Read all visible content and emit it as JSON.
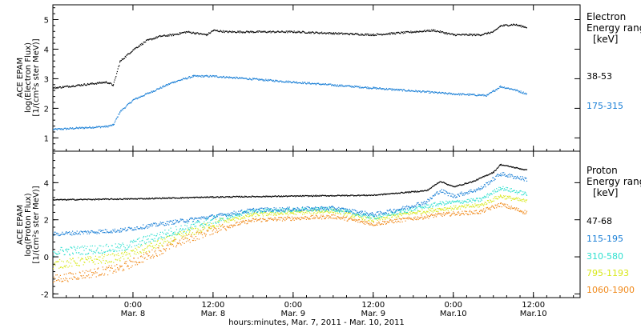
{
  "chart_data": [
    {
      "type": "scatter",
      "panel": "electron",
      "ylabel_lines": [
        "ACE EPAM",
        "log(Electron Flux)",
        "[1/(cm²s ster MeV)]"
      ],
      "ylim": [
        0.55,
        5.5
      ],
      "yticks": [
        1,
        2,
        3,
        4,
        5
      ],
      "xlim": [
        "2011-03-07T12:00",
        "2011-03-10T19:00"
      ],
      "legend_title_lines": [
        "Electron",
        "Energy ranges",
        "[keV]"
      ],
      "series": [
        {
          "name": "38-53",
          "color": "#000000",
          "points": [
            [
              "2011-03-07T12:00",
              2.7
            ],
            [
              "2011-03-07T14:00",
              2.75
            ],
            [
              "2011-03-07T16:00",
              2.8
            ],
            [
              "2011-03-07T18:00",
              2.85
            ],
            [
              "2011-03-07T20:00",
              2.9
            ],
            [
              "2011-03-07T21:00",
              2.8
            ],
            [
              "2011-03-07T22:00",
              3.6
            ],
            [
              "2011-03-08T00:00",
              4.0
            ],
            [
              "2011-03-08T02:00",
              4.3
            ],
            [
              "2011-03-08T04:00",
              4.45
            ],
            [
              "2011-03-08T06:00",
              4.5
            ],
            [
              "2011-03-08T08:00",
              4.6
            ],
            [
              "2011-03-08T11:00",
              4.5
            ],
            [
              "2011-03-08T12:00",
              4.65
            ],
            [
              "2011-03-08T14:00",
              4.6
            ],
            [
              "2011-03-08T18:00",
              4.6
            ],
            [
              "2011-03-09T00:00",
              4.6
            ],
            [
              "2011-03-09T06:00",
              4.55
            ],
            [
              "2011-03-09T12:00",
              4.5
            ],
            [
              "2011-03-09T18:00",
              4.6
            ],
            [
              "2011-03-09T21:00",
              4.65
            ],
            [
              "2011-03-10T00:00",
              4.5
            ],
            [
              "2011-03-10T04:00",
              4.5
            ],
            [
              "2011-03-10T06:00",
              4.6
            ],
            [
              "2011-03-10T07:00",
              4.8
            ],
            [
              "2011-03-10T09:00",
              4.85
            ],
            [
              "2011-03-10T11:00",
              4.75
            ]
          ]
        },
        {
          "name": "175-315",
          "color": "#1a7fd6",
          "points": [
            [
              "2011-03-07T12:00",
              1.3
            ],
            [
              "2011-03-07T16:00",
              1.35
            ],
            [
              "2011-03-07T20:00",
              1.4
            ],
            [
              "2011-03-07T21:00",
              1.45
            ],
            [
              "2011-03-07T22:00",
              1.9
            ],
            [
              "2011-03-08T00:00",
              2.3
            ],
            [
              "2011-03-08T03:00",
              2.6
            ],
            [
              "2011-03-08T06:00",
              2.9
            ],
            [
              "2011-03-08T09:00",
              3.1
            ],
            [
              "2011-03-08T12:00",
              3.1
            ],
            [
              "2011-03-08T15:00",
              3.05
            ],
            [
              "2011-03-08T18:00",
              3.0
            ],
            [
              "2011-03-09T00:00",
              2.9
            ],
            [
              "2011-03-09T06:00",
              2.8
            ],
            [
              "2011-03-09T12:00",
              2.7
            ],
            [
              "2011-03-09T18:00",
              2.6
            ],
            [
              "2011-03-10T00:00",
              2.5
            ],
            [
              "2011-03-10T05:00",
              2.45
            ],
            [
              "2011-03-10T06:00",
              2.6
            ],
            [
              "2011-03-10T07:00",
              2.75
            ],
            [
              "2011-03-10T09:00",
              2.65
            ],
            [
              "2011-03-10T11:00",
              2.5
            ]
          ]
        }
      ]
    },
    {
      "type": "scatter",
      "panel": "proton",
      "ylabel_lines": [
        "ACE EPAM",
        "log(Proton Flux)",
        "[1/(cm²s ster MeV)]"
      ],
      "ylim": [
        -2.2,
        5.7
      ],
      "yticks": [
        -2,
        0,
        2,
        4
      ],
      "xlim": [
        "2011-03-07T12:00",
        "2011-03-10T19:00"
      ],
      "xticks": [
        {
          "t": "2011-03-08T00:00",
          "time": "0:00",
          "date": "Mar. 8"
        },
        {
          "t": "2011-03-08T12:00",
          "time": "12:00",
          "date": "Mar. 8"
        },
        {
          "t": "2011-03-09T00:00",
          "time": "0:00",
          "date": "Mar. 9"
        },
        {
          "t": "2011-03-09T12:00",
          "time": "12:00",
          "date": "Mar. 9"
        },
        {
          "t": "2011-03-10T00:00",
          "time": "0:00",
          "date": "Mar.10"
        },
        {
          "t": "2011-03-10T12:00",
          "time": "12:00",
          "date": "Mar.10"
        }
      ],
      "xlabel": "hours:minutes, Mar. 7, 2011 - Mar. 10, 2011",
      "legend_title_lines": [
        "Proton",
        "Energy ranges",
        "[keV]"
      ],
      "series": [
        {
          "name": "47-68",
          "color": "#000000",
          "points": [
            [
              "2011-03-07T12:00",
              3.1
            ],
            [
              "2011-03-08T00:00",
              3.15
            ],
            [
              "2011-03-08T12:00",
              3.25
            ],
            [
              "2011-03-09T00:00",
              3.3
            ],
            [
              "2011-03-09T12:00",
              3.35
            ],
            [
              "2011-03-09T20:00",
              3.6
            ],
            [
              "2011-03-09T22:00",
              4.1
            ],
            [
              "2011-03-10T00:00",
              3.8
            ],
            [
              "2011-03-10T03:00",
              4.1
            ],
            [
              "2011-03-10T06:00",
              4.6
            ],
            [
              "2011-03-10T07:00",
              5.0
            ],
            [
              "2011-03-10T11:00",
              4.7
            ]
          ]
        },
        {
          "name": "115-195",
          "color": "#1a7fd6",
          "points": [
            [
              "2011-03-07T12:00",
              1.25
            ],
            [
              "2011-03-07T22:00",
              1.45
            ],
            [
              "2011-03-08T06:00",
              1.9
            ],
            [
              "2011-03-08T12:00",
              2.2
            ],
            [
              "2011-03-08T18:00",
              2.55
            ],
            [
              "2011-03-09T00:00",
              2.6
            ],
            [
              "2011-03-09T06:00",
              2.65
            ],
            [
              "2011-03-09T12:00",
              2.3
            ],
            [
              "2011-03-09T16:00",
              2.6
            ],
            [
              "2011-03-09T20:00",
              3.0
            ],
            [
              "2011-03-09T22:00",
              3.6
            ],
            [
              "2011-03-10T00:00",
              3.3
            ],
            [
              "2011-03-10T04:00",
              3.7
            ],
            [
              "2011-03-10T07:00",
              4.5
            ],
            [
              "2011-03-10T11:00",
              4.2
            ]
          ]
        },
        {
          "name": "310-580",
          "color": "#2fe0cf",
          "points": [
            [
              "2011-03-07T12:00",
              0.3
            ],
            [
              "2011-03-07T22:00",
              0.5
            ],
            [
              "2011-03-08T06:00",
              1.4
            ],
            [
              "2011-03-08T12:00",
              2.0
            ],
            [
              "2011-03-08T18:00",
              2.5
            ],
            [
              "2011-03-09T00:00",
              2.55
            ],
            [
              "2011-03-09T06:00",
              2.6
            ],
            [
              "2011-03-09T12:00",
              2.15
            ],
            [
              "2011-03-09T16:00",
              2.45
            ],
            [
              "2011-03-09T22:00",
              2.9
            ],
            [
              "2011-03-10T04:00",
              3.1
            ],
            [
              "2011-03-10T07:00",
              3.75
            ],
            [
              "2011-03-10T11:00",
              3.4
            ]
          ]
        },
        {
          "name": "795-1193",
          "color": "#d8e81a",
          "points": [
            [
              "2011-03-07T12:00",
              -0.4
            ],
            [
              "2011-03-07T22:00",
              0.0
            ],
            [
              "2011-03-08T06:00",
              1.0
            ],
            [
              "2011-03-08T12:00",
              1.8
            ],
            [
              "2011-03-08T18:00",
              2.3
            ],
            [
              "2011-03-09T00:00",
              2.4
            ],
            [
              "2011-03-09T06:00",
              2.5
            ],
            [
              "2011-03-09T12:00",
              2.0
            ],
            [
              "2011-03-09T16:00",
              2.3
            ],
            [
              "2011-03-09T22:00",
              2.6
            ],
            [
              "2011-03-10T04:00",
              2.8
            ],
            [
              "2011-03-10T07:00",
              3.3
            ],
            [
              "2011-03-10T11:00",
              3.0
            ]
          ]
        },
        {
          "name": "1060-1900",
          "color": "#f08a1c",
          "points": [
            [
              "2011-03-07T12:00",
              -1.2
            ],
            [
              "2011-03-07T22:00",
              -0.6
            ],
            [
              "2011-03-08T06:00",
              0.7
            ],
            [
              "2011-03-08T12:00",
              1.5
            ],
            [
              "2011-03-08T18:00",
              2.0
            ],
            [
              "2011-03-09T00:00",
              2.1
            ],
            [
              "2011-03-09T06:00",
              2.2
            ],
            [
              "2011-03-09T12:00",
              1.8
            ],
            [
              "2011-03-09T16:00",
              2.0
            ],
            [
              "2011-03-09T22:00",
              2.3
            ],
            [
              "2011-03-10T04:00",
              2.45
            ],
            [
              "2011-03-10T07:00",
              2.85
            ],
            [
              "2011-03-10T11:00",
              2.4
            ]
          ]
        }
      ]
    }
  ]
}
